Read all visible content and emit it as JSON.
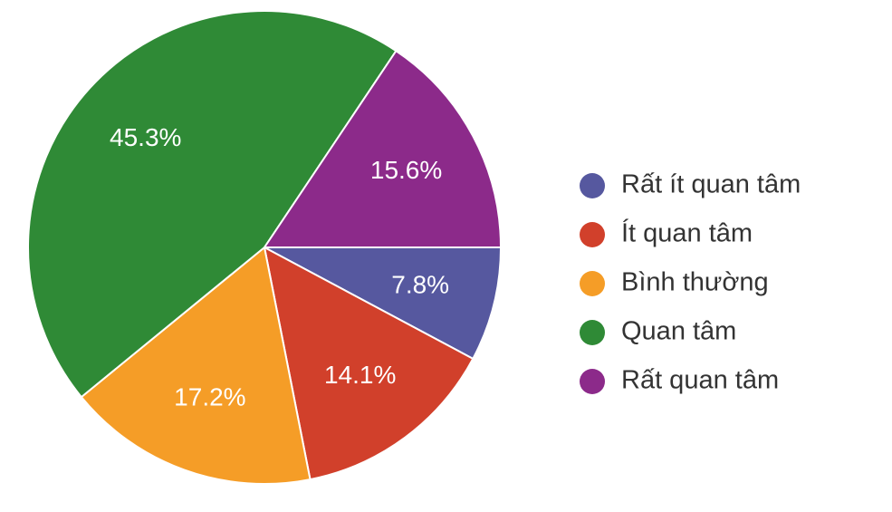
{
  "chart_data": {
    "type": "pie",
    "categories": [
      "Rất ít quan tâm",
      "Ít quan tâm",
      "Bình thường",
      "Quan tâm",
      "Rất quan tâm"
    ],
    "values": [
      7.8,
      14.1,
      17.2,
      45.3,
      15.6
    ],
    "value_labels": [
      "7.8%",
      "14.1%",
      "17.2%",
      "45.3%",
      "15.6%"
    ],
    "colors": [
      "#56589f",
      "#d1402b",
      "#f59d27",
      "#2f8a36",
      "#8c2a8a"
    ],
    "legend": "right"
  }
}
